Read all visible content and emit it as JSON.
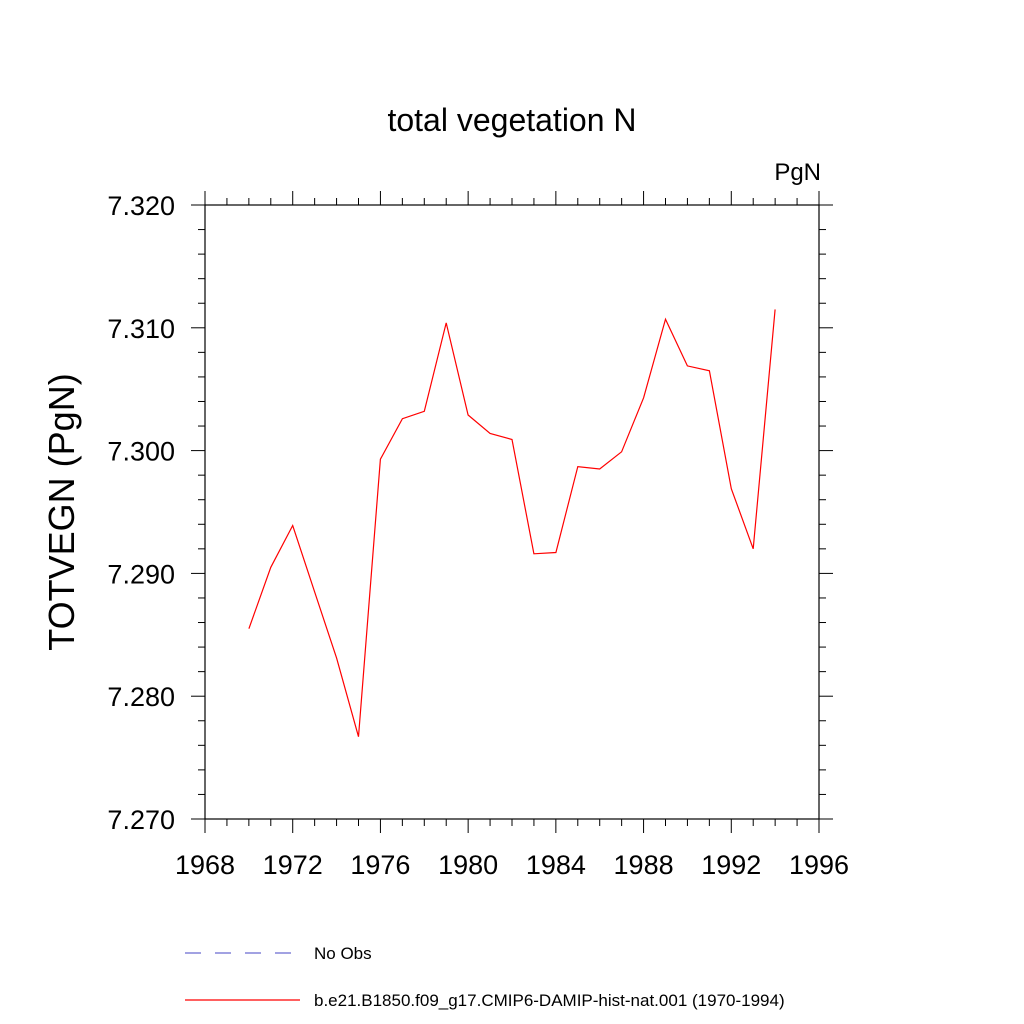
{
  "chart_data": {
    "type": "line",
    "title": "total vegetation N",
    "units_label": "PgN",
    "xlabel": "",
    "ylabel": "TOTVEGN  (PgN)",
    "xlim": [
      1968,
      1996
    ],
    "ylim": [
      7.27,
      7.32
    ],
    "x_ticks": [
      "1968",
      "1972",
      "1976",
      "1980",
      "1984",
      "1988",
      "1992",
      "1996"
    ],
    "y_ticks": [
      "7.270",
      "7.280",
      "7.290",
      "7.300",
      "7.310",
      "7.320"
    ],
    "grid": false,
    "series": [
      {
        "name": "b.e21.B1850.f09_g17.CMIP6-DAMIP-hist-nat.001 (1970-1994)",
        "color": "#ff0000",
        "style": "solid",
        "x": [
          1970,
          1971,
          1972,
          1973,
          1974,
          1975,
          1976,
          1977,
          1978,
          1979,
          1980,
          1981,
          1982,
          1983,
          1984,
          1985,
          1986,
          1987,
          1988,
          1989,
          1990,
          1991,
          1992,
          1993,
          1994
        ],
        "y": [
          7.2855,
          7.2905,
          7.2939,
          7.2885,
          7.2831,
          7.2767,
          7.2993,
          7.3026,
          7.3032,
          7.3104,
          7.3029,
          7.3014,
          7.3009,
          7.2916,
          7.2917,
          7.2987,
          7.2985,
          7.2999,
          7.3043,
          7.3107,
          7.3069,
          7.3065,
          7.2969,
          7.292,
          7.3115
        ]
      }
    ],
    "legend": {
      "placement": "bottom",
      "entries": [
        {
          "label": "No Obs",
          "color": "#6a6ad0",
          "style": "dashed"
        },
        {
          "label": "b.e21.B1850.f09_g17.CMIP6-DAMIP-hist-nat.001 (1970-1994)",
          "color": "#ff0000",
          "style": "solid"
        }
      ]
    }
  }
}
